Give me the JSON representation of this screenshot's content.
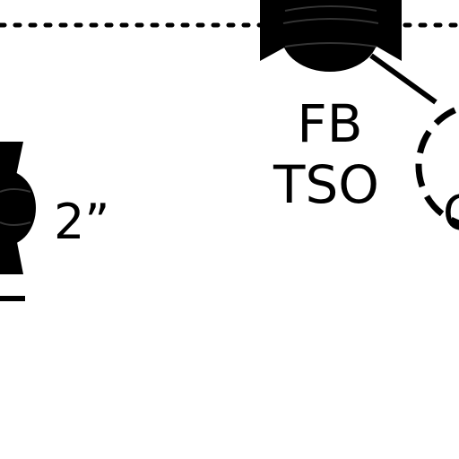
{
  "diagram": {
    "labels": {
      "fb": "FB",
      "tso": "TSO",
      "size": "2”",
      "partial": "C"
    },
    "colors": {
      "ink": "#000000",
      "paper": "#ffffff"
    },
    "symbols": [
      "valve-symbol",
      "valve-symbol"
    ]
  }
}
